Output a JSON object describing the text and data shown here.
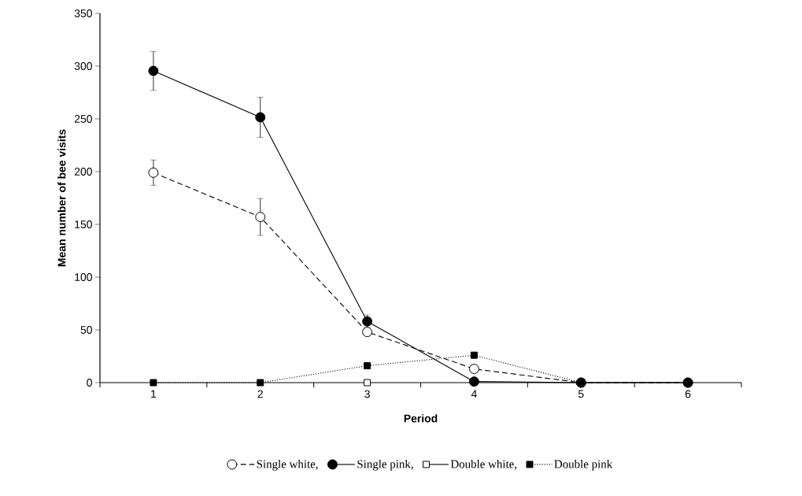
{
  "chart_data": {
    "type": "line",
    "xlabel": "Period",
    "ylabel": "Mean number of bee visits",
    "categories": [
      "1",
      "2",
      "3",
      "4",
      "5",
      "6"
    ],
    "ylim": [
      0,
      350
    ],
    "yticks": [
      0,
      50,
      100,
      150,
      200,
      250,
      300,
      350
    ],
    "legend": "bottom",
    "series": [
      {
        "name": "Single white,",
        "color": "#000000",
        "marker": "circle-open",
        "line_style": "dashed",
        "values": [
          199,
          157,
          48,
          13,
          0,
          0
        ],
        "errors": [
          12,
          17.5,
          null,
          null,
          null,
          null
        ]
      },
      {
        "name": "Single pink,",
        "color": "#000000",
        "marker": "circle",
        "line_style": "solid",
        "values": [
          295.5,
          251.5,
          58,
          1,
          0,
          0
        ],
        "errors": [
          18.5,
          19,
          6,
          null,
          null,
          null
        ]
      },
      {
        "name": "Double white,",
        "color": "#000000",
        "marker": "square-open",
        "line_style": "solid",
        "values": [
          null,
          null,
          0,
          null,
          null,
          null
        ]
      },
      {
        "name": "Double pink",
        "color": "#000000",
        "marker": "square",
        "line_style": "dotted",
        "values": [
          0,
          0,
          16,
          26,
          0,
          0
        ]
      }
    ]
  }
}
